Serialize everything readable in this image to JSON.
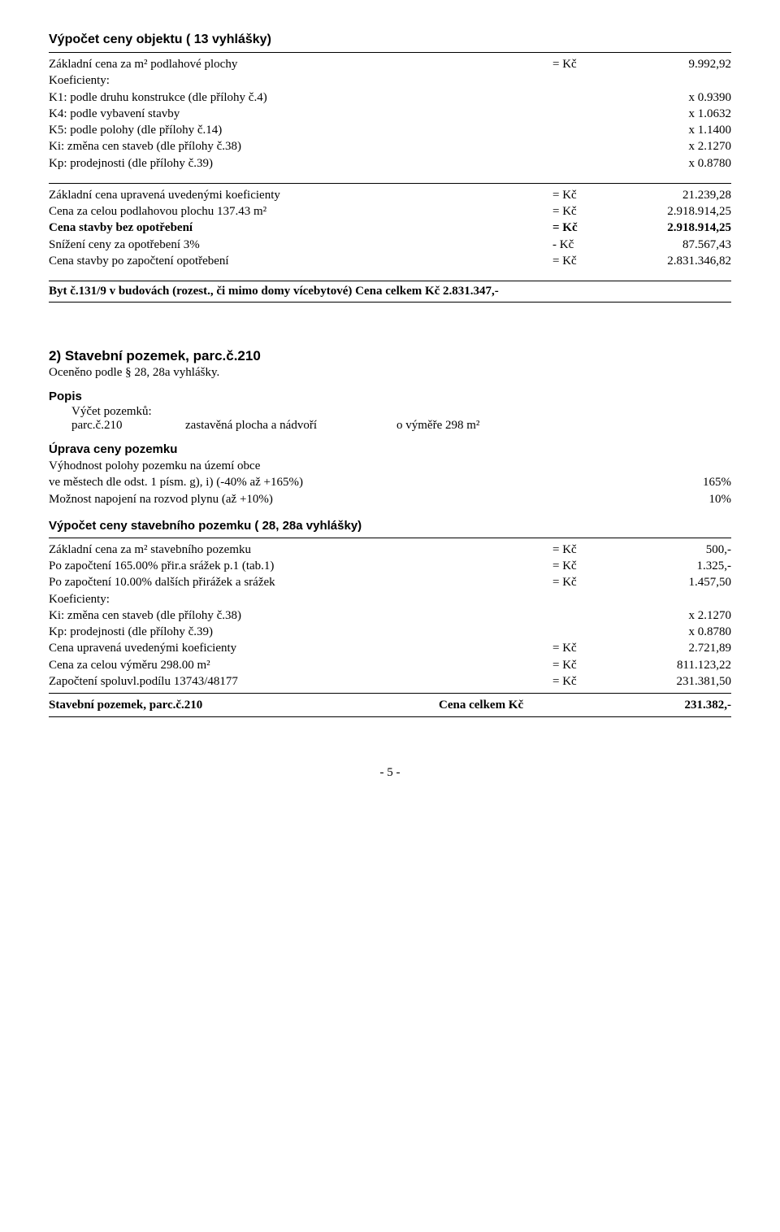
{
  "calc1": {
    "header": "Výpočet ceny objektu ( 13 vyhlášky)",
    "rows": [
      {
        "label": "Základní cena za m² podlahové plochy",
        "mid": "= Kč",
        "val": "9.992,92"
      },
      {
        "label": "Koeficienty:",
        "mid": "",
        "val": ""
      },
      {
        "label": "K1: podle druhu konstrukce (dle přílohy č.4)",
        "mid": "",
        "val": "x 0.9390"
      },
      {
        "label": "K4: podle vybavení stavby",
        "mid": "",
        "val": "x 1.0632"
      },
      {
        "label": "K5: podle polohy (dle přílohy č.14)",
        "mid": "",
        "val": "x 1.1400"
      },
      {
        "label": "Ki: změna cen staveb (dle přílohy č.38)",
        "mid": "",
        "val": "x 2.1270"
      },
      {
        "label": "Kp: prodejnosti (dle přílohy č.39)",
        "mid": "",
        "val": "x 0.8780"
      }
    ],
    "rows2": [
      {
        "label": "Základní cena upravená uvedenými koeficienty",
        "mid": "= Kč",
        "val": "21.239,28"
      },
      {
        "label": "Cena za celou podlahovou plochu 137.43 m²",
        "mid": "= Kč",
        "val": "2.918.914,25"
      },
      {
        "label": "Cena stavby bez opotřebení",
        "mid": "= Kč",
        "val": "2.918.914,25",
        "bold": true
      },
      {
        "label": "Snížení ceny za opotřebení 3%",
        "mid": "- Kč",
        "val": "87.567,43"
      },
      {
        "label": "Cena stavby po započtení opotřebení",
        "mid": "= Kč",
        "val": "2.831.346,82"
      }
    ],
    "summary": "Byt č.131/9 v budovách (rozest., či mimo domy vícebytové) Cena celkem Kč  2.831.347,-"
  },
  "section2": {
    "title": "2) Stavební pozemek, parc.č.210",
    "sub": "Oceněno podle § 28, 28a vyhlášky.",
    "popis_label": "Popis",
    "vycet": "Výčet pozemků:",
    "parc": {
      "c1": "parc.č.210",
      "c2": "zastavěná plocha a nádvoří",
      "c3": "o výměře 298 m²"
    },
    "uprava_label": "Úprava ceny pozemku",
    "uprava_rows": [
      {
        "label": "Výhodnost polohy pozemku na území obce",
        "val": ""
      },
      {
        "label": "ve městech dle odst. 1 písm. g), i) (-40% až +165%)",
        "val": "165%"
      },
      {
        "label": "Možnost napojení na rozvod plynu (až +10%)",
        "val": "10%"
      }
    ],
    "vypocet_label": "Výpočet ceny stavebního pozemku ( 28, 28a vyhlášky)",
    "calc_rows": [
      {
        "label": "Základní cena za m² stavebního pozemku",
        "mid": "= Kč",
        "val": "500,-"
      },
      {
        "label": "Po započtení 165.00% přir.a srážek p.1 (tab.1)",
        "mid": "= Kč",
        "val": "1.325,-"
      },
      {
        "label": "Po započtení 10.00% dalších přirážek a srážek",
        "mid": "= Kč",
        "val": "1.457,50"
      },
      {
        "label": "Koeficienty:",
        "mid": "",
        "val": ""
      },
      {
        "label": "Ki: změna cen staveb (dle přílohy č.38)",
        "mid": "",
        "val": "x 2.1270"
      },
      {
        "label": "Kp: prodejnosti (dle přílohy č.39)",
        "mid": "",
        "val": "x 0.8780"
      },
      {
        "label": "Cena upravená uvedenými koeficienty",
        "mid": "= Kč",
        "val": "2.721,89"
      },
      {
        "label": "Cena za celou výměru 298.00 m²",
        "mid": "= Kč",
        "val": "811.123,22"
      },
      {
        "label": "Započtení spoluvl.podílu 13743/48177",
        "mid": "= Kč",
        "val": "231.381,50"
      }
    ],
    "summary_label": "Stavební pozemek, parc.č.210",
    "summary_mid": "Cena celkem Kč",
    "summary_val": "231.382,-"
  },
  "pagenum": "- 5 -"
}
